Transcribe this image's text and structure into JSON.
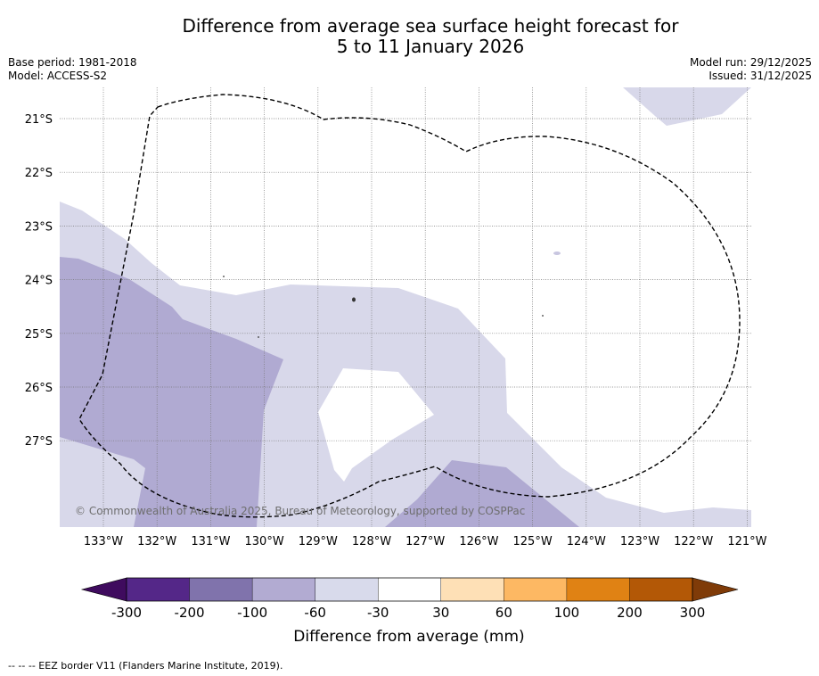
{
  "title": {
    "line1": "Difference from average sea surface height forecast for",
    "line2": "5 to 11 January 2026"
  },
  "meta_left": {
    "base_period": "Base period: 1981-2018",
    "model": "Model: ACCESS-S2"
  },
  "meta_right": {
    "model_run": "Model run: 29/12/2025",
    "issued": "Issued: 31/12/2025"
  },
  "map": {
    "lon_labels": [
      "133°W",
      "132°W",
      "131°W",
      "130°W",
      "129°W",
      "128°W",
      "127°W",
      "126°W",
      "125°W",
      "124°W",
      "123°W",
      "122°W",
      "121°W"
    ],
    "lat_labels": [
      "21°S",
      "22°S",
      "23°S",
      "24°S",
      "25°S",
      "26°S",
      "27°S"
    ],
    "attribution": "© Commonwealth of Australia 2025, Bureau of Meteorology, supported by COSPPac",
    "colors": {
      "light_lavender": "#d8d8ea",
      "mid_lavender": "#b0aad2",
      "eez_line": "#000000",
      "gridline": "#777777"
    }
  },
  "colorbar": {
    "label": "Difference from average (mm)",
    "ticks": [
      "-300",
      "-200",
      "-100",
      "-60",
      "-30",
      "30",
      "60",
      "100",
      "200",
      "300"
    ],
    "colors": [
      "#3f0b5e",
      "#542788",
      "#8073ac",
      "#b2abd2",
      "#d8daeb",
      "#ffffff",
      "#fee0b6",
      "#fdb863",
      "#e08214",
      "#b35806",
      "#7f3b08"
    ]
  },
  "footer": "-- -- -- EEZ border V11 (Flanders Marine Institute, 2019)."
}
